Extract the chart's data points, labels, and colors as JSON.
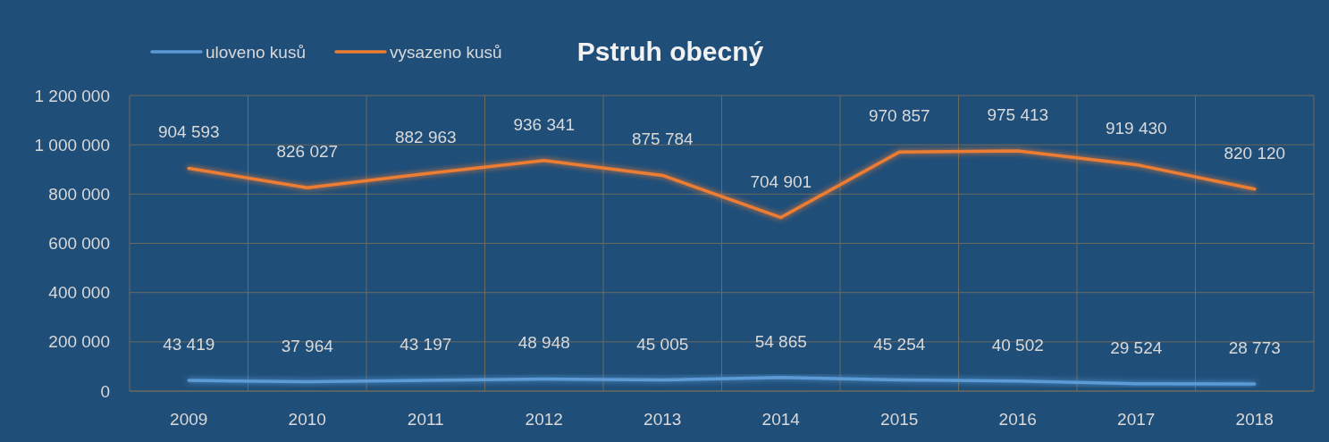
{
  "chart_data": {
    "type": "line",
    "title": "Pstruh obecný",
    "categories": [
      "2009",
      "2010",
      "2011",
      "2012",
      "2013",
      "2014",
      "2015",
      "2016",
      "2017",
      "2018"
    ],
    "series": [
      {
        "name": "uloveno kusů",
        "color": "#5b9bd5",
        "values": [
          43419,
          37964,
          43197,
          48948,
          45005,
          54865,
          45254,
          40502,
          29524,
          28773
        ]
      },
      {
        "name": "vysazeno kusů",
        "color": "#ed7d31",
        "values": [
          904593,
          826027,
          882963,
          936341,
          875784,
          704901,
          970857,
          975413,
          919430,
          820120
        ]
      }
    ],
    "ylim": [
      0,
      1200000
    ],
    "yticks": [
      0,
      {
        "value": 200000,
        "label": "200 000"
      },
      {
        "value": 400000,
        "label": "400 000"
      },
      {
        "value": 600000,
        "label": "600 000"
      },
      {
        "value": 800000,
        "label": "800 000"
      },
      {
        "value": 1000000,
        "label": "1 000 000"
      },
      {
        "value": 1200000,
        "label": "1 200 000"
      }
    ],
    "grid": true,
    "legend": "top left",
    "data_labels": true,
    "marker": "none",
    "line_style": "solid"
  }
}
